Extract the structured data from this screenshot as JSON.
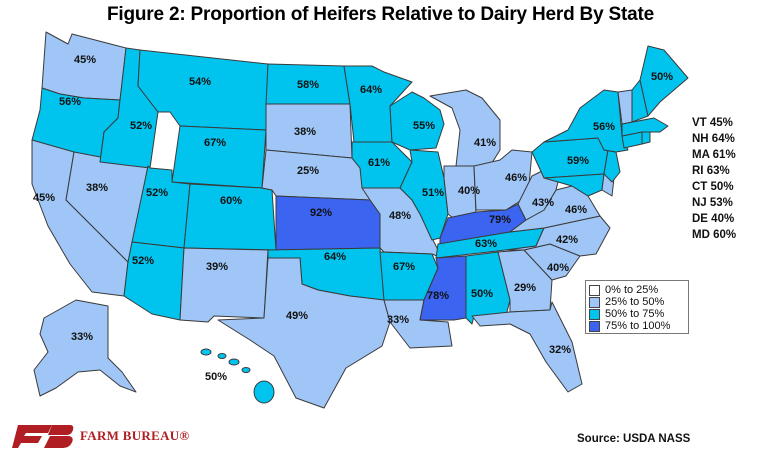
{
  "title": "Figure 2: Proportion of Heifers Relative to Dairy Herd By State",
  "colors": {
    "band_0_25": "#ffffff",
    "band_25_50": "#9fc6f6",
    "band_50_75": "#00c4ee",
    "band_75_100": "#3b64f0",
    "border": "#3a3a3a"
  },
  "legend": [
    {
      "label": "0% to 25%",
      "color": "#ffffff"
    },
    {
      "label": "25% to 50%",
      "color": "#9fc6f6"
    },
    {
      "label": "50% to 75%",
      "color": "#00c4ee"
    },
    {
      "label": "75% to 100%",
      "color": "#3b64f0"
    }
  ],
  "states": [
    {
      "name": "WA",
      "value": "45%",
      "band": "band_25_50"
    },
    {
      "name": "OR",
      "value": "56%",
      "band": "band_50_75"
    },
    {
      "name": "CA",
      "value": "45%",
      "band": "band_25_50"
    },
    {
      "name": "NV",
      "value": "38%",
      "band": "band_25_50"
    },
    {
      "name": "ID",
      "value": "52%",
      "band": "band_50_75"
    },
    {
      "name": "MT",
      "value": "54%",
      "band": "band_50_75"
    },
    {
      "name": "WY",
      "value": "67%",
      "band": "band_50_75"
    },
    {
      "name": "UT",
      "value": "52%",
      "band": "band_50_75"
    },
    {
      "name": "AZ",
      "value": "52%",
      "band": "band_50_75"
    },
    {
      "name": "CO",
      "value": "60%",
      "band": "band_50_75"
    },
    {
      "name": "NM",
      "value": "39%",
      "band": "band_25_50"
    },
    {
      "name": "ND",
      "value": "58%",
      "band": "band_50_75"
    },
    {
      "name": "SD",
      "value": "38%",
      "band": "band_25_50"
    },
    {
      "name": "NE",
      "value": "25%",
      "band": "band_25_50"
    },
    {
      "name": "KS",
      "value": "92%",
      "band": "band_75_100"
    },
    {
      "name": "OK",
      "value": "64%",
      "band": "band_50_75"
    },
    {
      "name": "TX",
      "value": "49%",
      "band": "band_25_50"
    },
    {
      "name": "MN",
      "value": "64%",
      "band": "band_50_75"
    },
    {
      "name": "IA",
      "value": "61%",
      "band": "band_50_75"
    },
    {
      "name": "MO",
      "value": "48%",
      "band": "band_25_50"
    },
    {
      "name": "AR",
      "value": "67%",
      "band": "band_50_75"
    },
    {
      "name": "LA",
      "value": "33%",
      "band": "band_25_50"
    },
    {
      "name": "WI",
      "value": "55%",
      "band": "band_50_75"
    },
    {
      "name": "IL",
      "value": "51%",
      "band": "band_50_75"
    },
    {
      "name": "MI",
      "value": "41%",
      "band": "band_25_50"
    },
    {
      "name": "IN",
      "value": "40%",
      "band": "band_25_50"
    },
    {
      "name": "OH",
      "value": "46%",
      "band": "band_25_50"
    },
    {
      "name": "KY",
      "value": "79%",
      "band": "band_75_100"
    },
    {
      "name": "TN",
      "value": "63%",
      "band": "band_50_75"
    },
    {
      "name": "MS",
      "value": "78%",
      "band": "band_75_100"
    },
    {
      "name": "AL",
      "value": "50%",
      "band": "band_50_75"
    },
    {
      "name": "GA",
      "value": "29%",
      "band": "band_25_50"
    },
    {
      "name": "FL",
      "value": "32%",
      "band": "band_25_50"
    },
    {
      "name": "SC",
      "value": "40%",
      "band": "band_25_50"
    },
    {
      "name": "NC",
      "value": "42%",
      "band": "band_25_50"
    },
    {
      "name": "VA",
      "value": "46%",
      "band": "band_25_50"
    },
    {
      "name": "WV",
      "value": "43%",
      "band": "band_25_50"
    },
    {
      "name": "PA",
      "value": "59%",
      "band": "band_50_75"
    },
    {
      "name": "NY",
      "value": "56%",
      "band": "band_50_75"
    },
    {
      "name": "ME",
      "value": "50%",
      "band": "band_50_75"
    },
    {
      "name": "AK",
      "value": "33%",
      "band": "band_25_50"
    },
    {
      "name": "HI",
      "value": "50%",
      "band": "band_50_75"
    }
  ],
  "small_states": [
    {
      "name": "VT",
      "text": "VT 45%",
      "band": "band_25_50"
    },
    {
      "name": "NH",
      "text": "NH 64%",
      "band": "band_50_75"
    },
    {
      "name": "MA",
      "text": "MA 61%",
      "band": "band_50_75"
    },
    {
      "name": "RI",
      "text": "RI 63%",
      "band": "band_50_75"
    },
    {
      "name": "CT",
      "text": "CT 50%",
      "band": "band_50_75"
    },
    {
      "name": "NJ",
      "text": "NJ 53%",
      "band": "band_50_75"
    },
    {
      "name": "DE",
      "text": "DE 40%",
      "band": "band_25_50"
    },
    {
      "name": "MD",
      "text": "MD 60%",
      "band": "band_50_75"
    }
  ],
  "logo": {
    "text": "FARM BUREAU®",
    "color": "#b01e23"
  },
  "source": "Source: USDA NASS"
}
